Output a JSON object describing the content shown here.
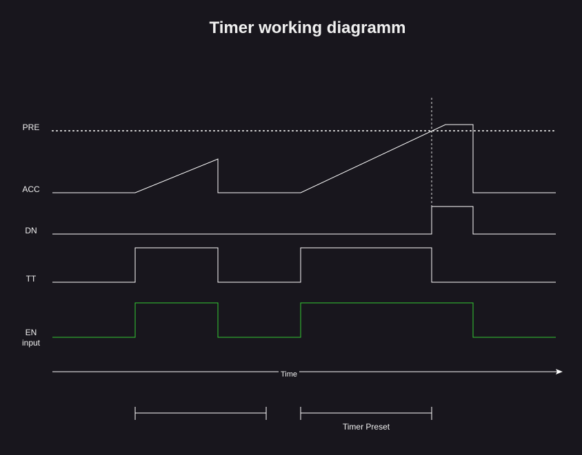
{
  "title": "Timer working diagramm",
  "signals": {
    "pre": "PRE",
    "acc": "ACC",
    "dn": "DN",
    "tt": "TT",
    "en_line1": "EN",
    "en_line2": "input"
  },
  "axis": {
    "label": "Time"
  },
  "annotations": {
    "timer_preset": "Timer Preset"
  },
  "colors": {
    "background": "#18161d",
    "signal": "#ffffff",
    "input_signal": "#33cc33",
    "dotted_threshold": "#e0e0e0"
  }
}
